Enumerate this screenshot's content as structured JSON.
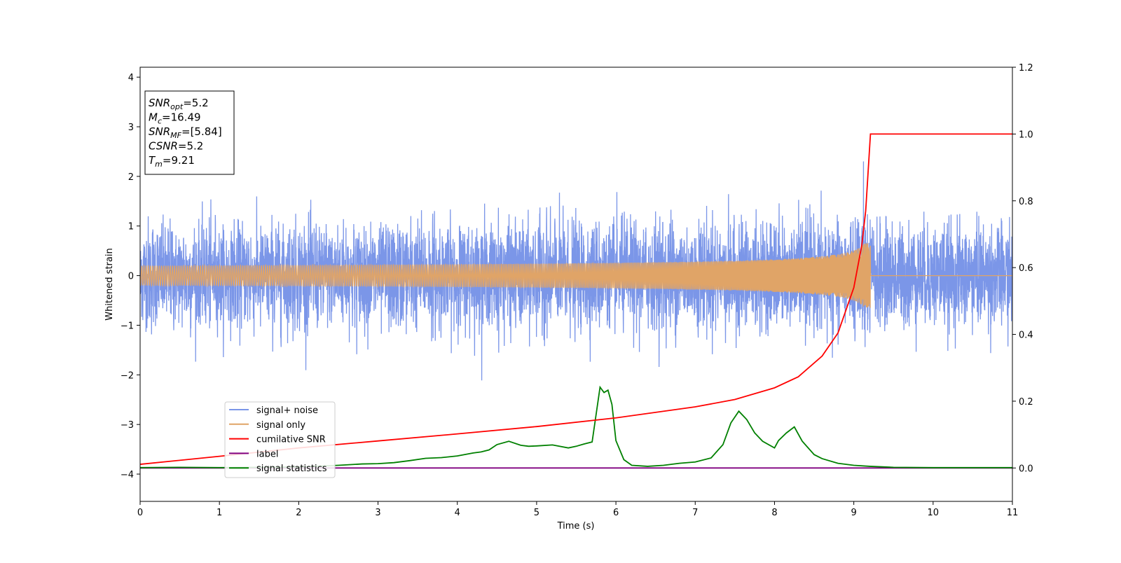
{
  "chart_data": {
    "type": "line",
    "xlabel": "Time (s)",
    "ylabel": "Whitened strain",
    "xlim": [
      0,
      11
    ],
    "ylim_left": [
      -4.55,
      4.2
    ],
    "ylim_right": [
      -0.1,
      1.2
    ],
    "x_ticks": [
      "0",
      "1",
      "2",
      "3",
      "4",
      "5",
      "6",
      "7",
      "8",
      "9",
      "10",
      "11"
    ],
    "y_ticks_left": [
      "4",
      "3",
      "2",
      "1",
      "0",
      "−1",
      "−2",
      "−3",
      "−4"
    ],
    "y_ticks_right": [
      "1.2",
      "1.0",
      "0.8",
      "0.6",
      "0.4",
      "0.2",
      "0.0"
    ],
    "grid": false,
    "legend_placement": "lower-left",
    "annotation": {
      "lines": [
        {
          "main": "SNR",
          "sub": "opt",
          "rest": "=5.2"
        },
        {
          "main": "M",
          "sub": "c",
          "rest": "=16.49"
        },
        {
          "main": "SNR",
          "sub": "MF",
          "rest": "=[5.84]"
        },
        {
          "main": "CSNR",
          "sub": "",
          "rest": "=5.2"
        },
        {
          "main": "T",
          "sub": "m",
          "rest": "=9.21"
        }
      ]
    },
    "series": [
      {
        "name": "signal+ noise",
        "color": "#7b96e8",
        "axis": "left",
        "noise_amplitude": 0.5,
        "x_range": [
          0,
          11
        ]
      },
      {
        "name": "signal only",
        "color": "#e0a467",
        "axis": "left",
        "merger_time": 9.21,
        "peak_amplitude": 0.65
      },
      {
        "name": "cumilative SNR",
        "color": "#ff0000",
        "axis": "right",
        "x": [
          0,
          1,
          2,
          3,
          4,
          5,
          6,
          7,
          7.5,
          8,
          8.3,
          8.6,
          8.8,
          9.0,
          9.1,
          9.15,
          9.21,
          11
        ],
        "y": [
          0.011,
          0.035,
          0.06,
          0.081,
          0.102,
          0.124,
          0.15,
          0.183,
          0.205,
          0.24,
          0.273,
          0.335,
          0.404,
          0.54,
          0.666,
          0.77,
          1.0,
          1.0
        ]
      },
      {
        "name": "label",
        "color": "#800080",
        "axis": "right",
        "x": [
          0,
          11
        ],
        "y": [
          0,
          0
        ]
      },
      {
        "name": "signal statistics",
        "color": "#008000",
        "axis": "right",
        "x": [
          0,
          0.5,
          1,
          1.5,
          2,
          2.5,
          2.8,
          3,
          3.2,
          3.4,
          3.6,
          3.8,
          4.0,
          4.2,
          4.3,
          4.4,
          4.5,
          4.65,
          4.8,
          4.9,
          5.0,
          5.2,
          5.4,
          5.5,
          5.6,
          5.7,
          5.8,
          5.85,
          5.9,
          5.95,
          6.0,
          6.1,
          6.2,
          6.4,
          6.6,
          6.8,
          7.0,
          7.2,
          7.35,
          7.45,
          7.55,
          7.65,
          7.75,
          7.85,
          8.0,
          8.05,
          8.15,
          8.25,
          8.35,
          8.5,
          8.6,
          8.8,
          9.0,
          9.2,
          9.5,
          10,
          11
        ],
        "y": [
          0.001,
          0.002,
          0.001,
          0.002,
          0.003,
          0.008,
          0.012,
          0.013,
          0.016,
          0.022,
          0.029,
          0.031,
          0.036,
          0.045,
          0.048,
          0.054,
          0.07,
          0.08,
          0.068,
          0.065,
          0.066,
          0.069,
          0.06,
          0.065,
          0.072,
          0.078,
          0.242,
          0.226,
          0.233,
          0.19,
          0.082,
          0.025,
          0.008,
          0.005,
          0.008,
          0.014,
          0.018,
          0.03,
          0.07,
          0.135,
          0.17,
          0.145,
          0.105,
          0.08,
          0.06,
          0.082,
          0.105,
          0.123,
          0.08,
          0.04,
          0.028,
          0.014,
          0.008,
          0.005,
          0.002,
          0.001,
          0.001
        ]
      }
    ]
  }
}
